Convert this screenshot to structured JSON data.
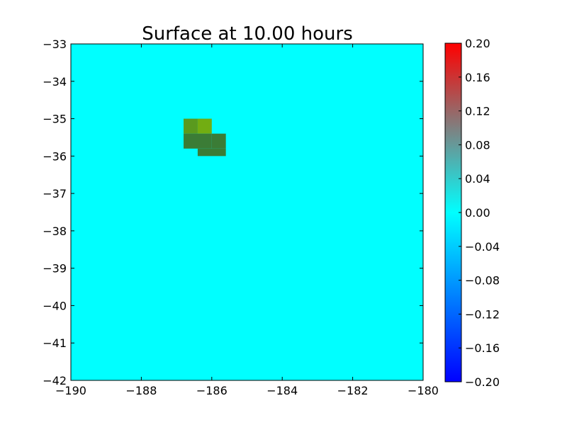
{
  "chart_data": {
    "type": "heatmap",
    "title": "Surface at 10.00 hours",
    "xlabel": "",
    "ylabel": "",
    "xlim": [
      -190,
      -180
    ],
    "ylim": [
      -42,
      -33
    ],
    "x_ticks": [
      -190,
      -188,
      -186,
      -184,
      -182,
      -180
    ],
    "y_ticks": [
      -42,
      -41,
      -40,
      -39,
      -38,
      -37,
      -36,
      -35,
      -34,
      -33
    ],
    "x_tick_labels": [
      "−190",
      "−188",
      "−186",
      "−184",
      "−182",
      "−180"
    ],
    "y_tick_labels": [
      "−42",
      "−41",
      "−40",
      "−39",
      "−38",
      "−37",
      "−36",
      "−35",
      "−34",
      "−33"
    ],
    "background_value": 0.0,
    "background_color": "#00ffff",
    "cells": [
      {
        "x0": -186.8,
        "x1": -186.4,
        "y0": -35.4,
        "y1": -35.0,
        "color": "#5a9a1e"
      },
      {
        "x0": -186.4,
        "x1": -186.0,
        "y0": -35.4,
        "y1": -35.0,
        "color": "#72ad12"
      },
      {
        "x0": -186.8,
        "x1": -186.0,
        "y0": -35.8,
        "y1": -35.4,
        "color": "#3b7c36"
      },
      {
        "x0": -186.0,
        "x1": -185.6,
        "y0": -35.8,
        "y1": -35.4,
        "color": "#3b7c36"
      },
      {
        "x0": -186.4,
        "x1": -185.6,
        "y0": -36.0,
        "y1": -35.8,
        "color": "#3b7c36"
      }
    ],
    "grid": false,
    "colorbar": {
      "range": [
        -0.2,
        0.2
      ],
      "ticks": [
        0.2,
        0.16,
        0.12,
        0.08,
        0.04,
        0.0,
        -0.04,
        -0.08,
        -0.12,
        -0.16,
        -0.2
      ],
      "tick_labels": [
        "0.20",
        "0.16",
        "0.12",
        "0.08",
        "0.04",
        "0.00",
        "−0.04",
        "−0.08",
        "−0.12",
        "−0.16",
        "−0.20"
      ],
      "colors": [
        "#0000ff",
        "#00ffff",
        "#ff0000"
      ]
    }
  }
}
